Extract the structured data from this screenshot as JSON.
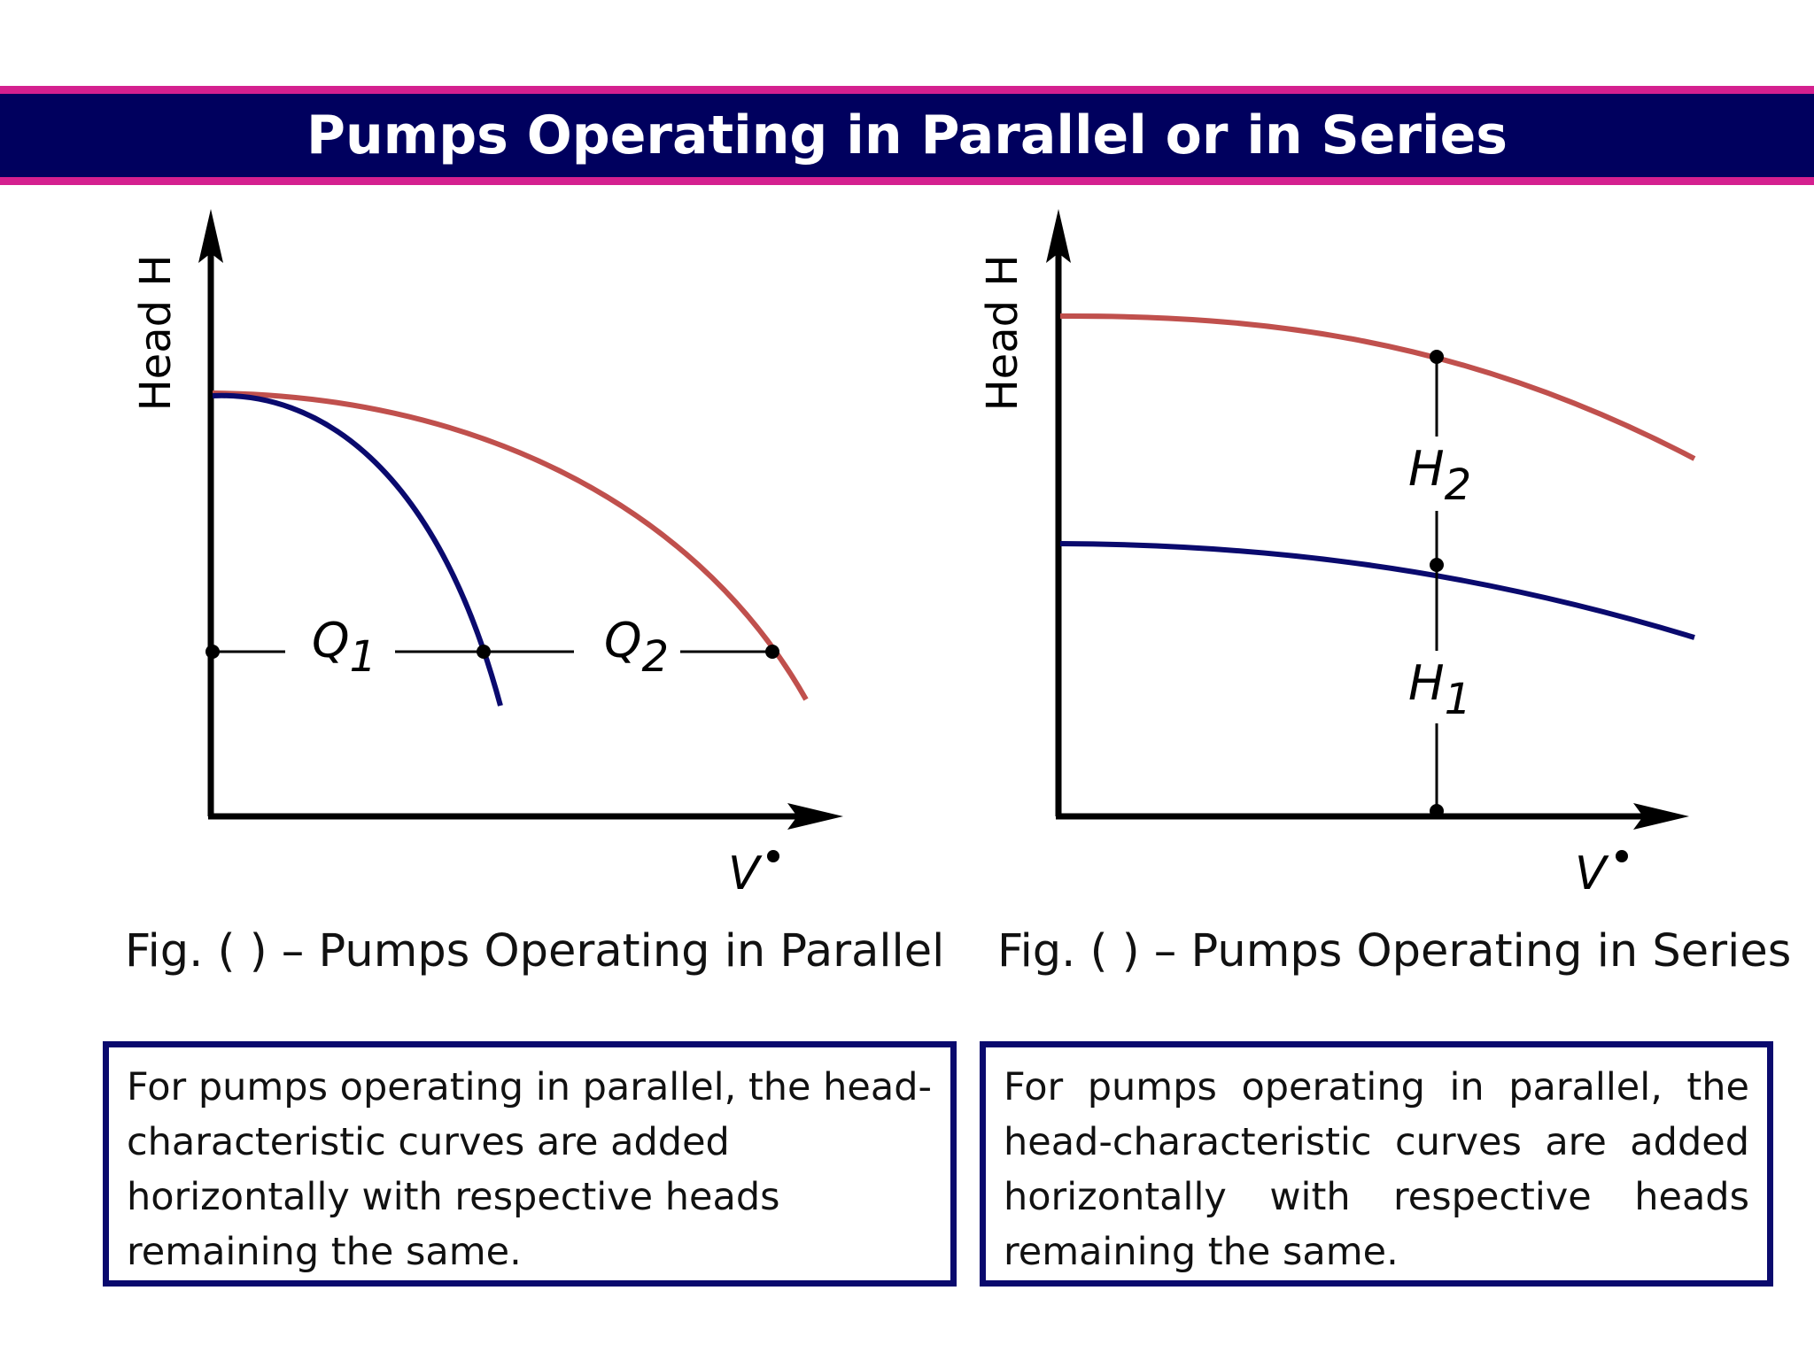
{
  "header": {
    "title": "Pumps Operating in Parallel or in Series"
  },
  "colors": {
    "header_bg": "#00005e",
    "header_border": "#d4208f",
    "pump_curve_single": "#0a0a6e",
    "pump_curve_combined": "#c0504d",
    "axis": "#000000",
    "box_border": "#0a0a6e"
  },
  "figures": {
    "parallel": {
      "ylabel": "Head  H",
      "xlabel": "V",
      "caption": "Fig. ( ) – Pumps Operating in Parallel",
      "q1": "Q",
      "q1_sub": "1",
      "q2": "Q",
      "q2_sub": "2",
      "description": "For pumps operating in parallel, the head-characteristic curves are added horizontally with respective heads remaining the same."
    },
    "series": {
      "ylabel": "Head  H",
      "xlabel": "V",
      "caption": "Fig. ( ) – Pumps Operating in Series",
      "h1": "H",
      "h1_sub": "1",
      "h2": "H",
      "h2_sub": "2",
      "description": "For pumps operating in parallel, the head-characteristic curves are added horizontally with respective heads remaining the same."
    }
  }
}
